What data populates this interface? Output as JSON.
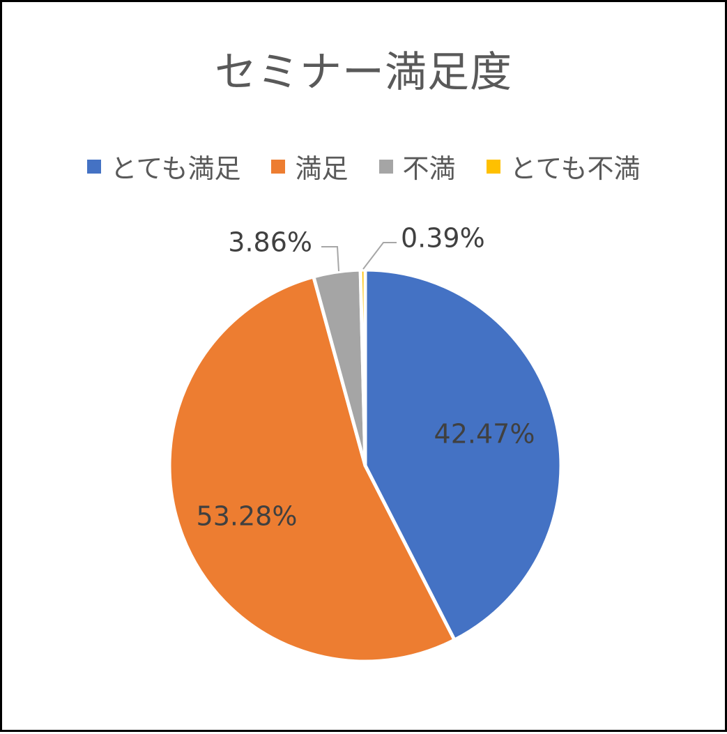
{
  "chart_data": {
    "type": "pie",
    "title": "セミナー満足度",
    "legend_position": "top",
    "categories": [
      "とても満足",
      "満足",
      "不満",
      "とても不満"
    ],
    "values": [
      42.47,
      53.28,
      3.86,
      0.39
    ],
    "data_labels": [
      "42.47%",
      "53.28%",
      "3.86%",
      "0.39%"
    ],
    "colors": [
      "#4472C4",
      "#ED7D31",
      "#A5A5A5",
      "#FFC000"
    ],
    "label_color": "#404040",
    "title_color": "#595959",
    "leader_line_color": "#A6A6A6",
    "slice_border_color": "#FFFFFF"
  }
}
